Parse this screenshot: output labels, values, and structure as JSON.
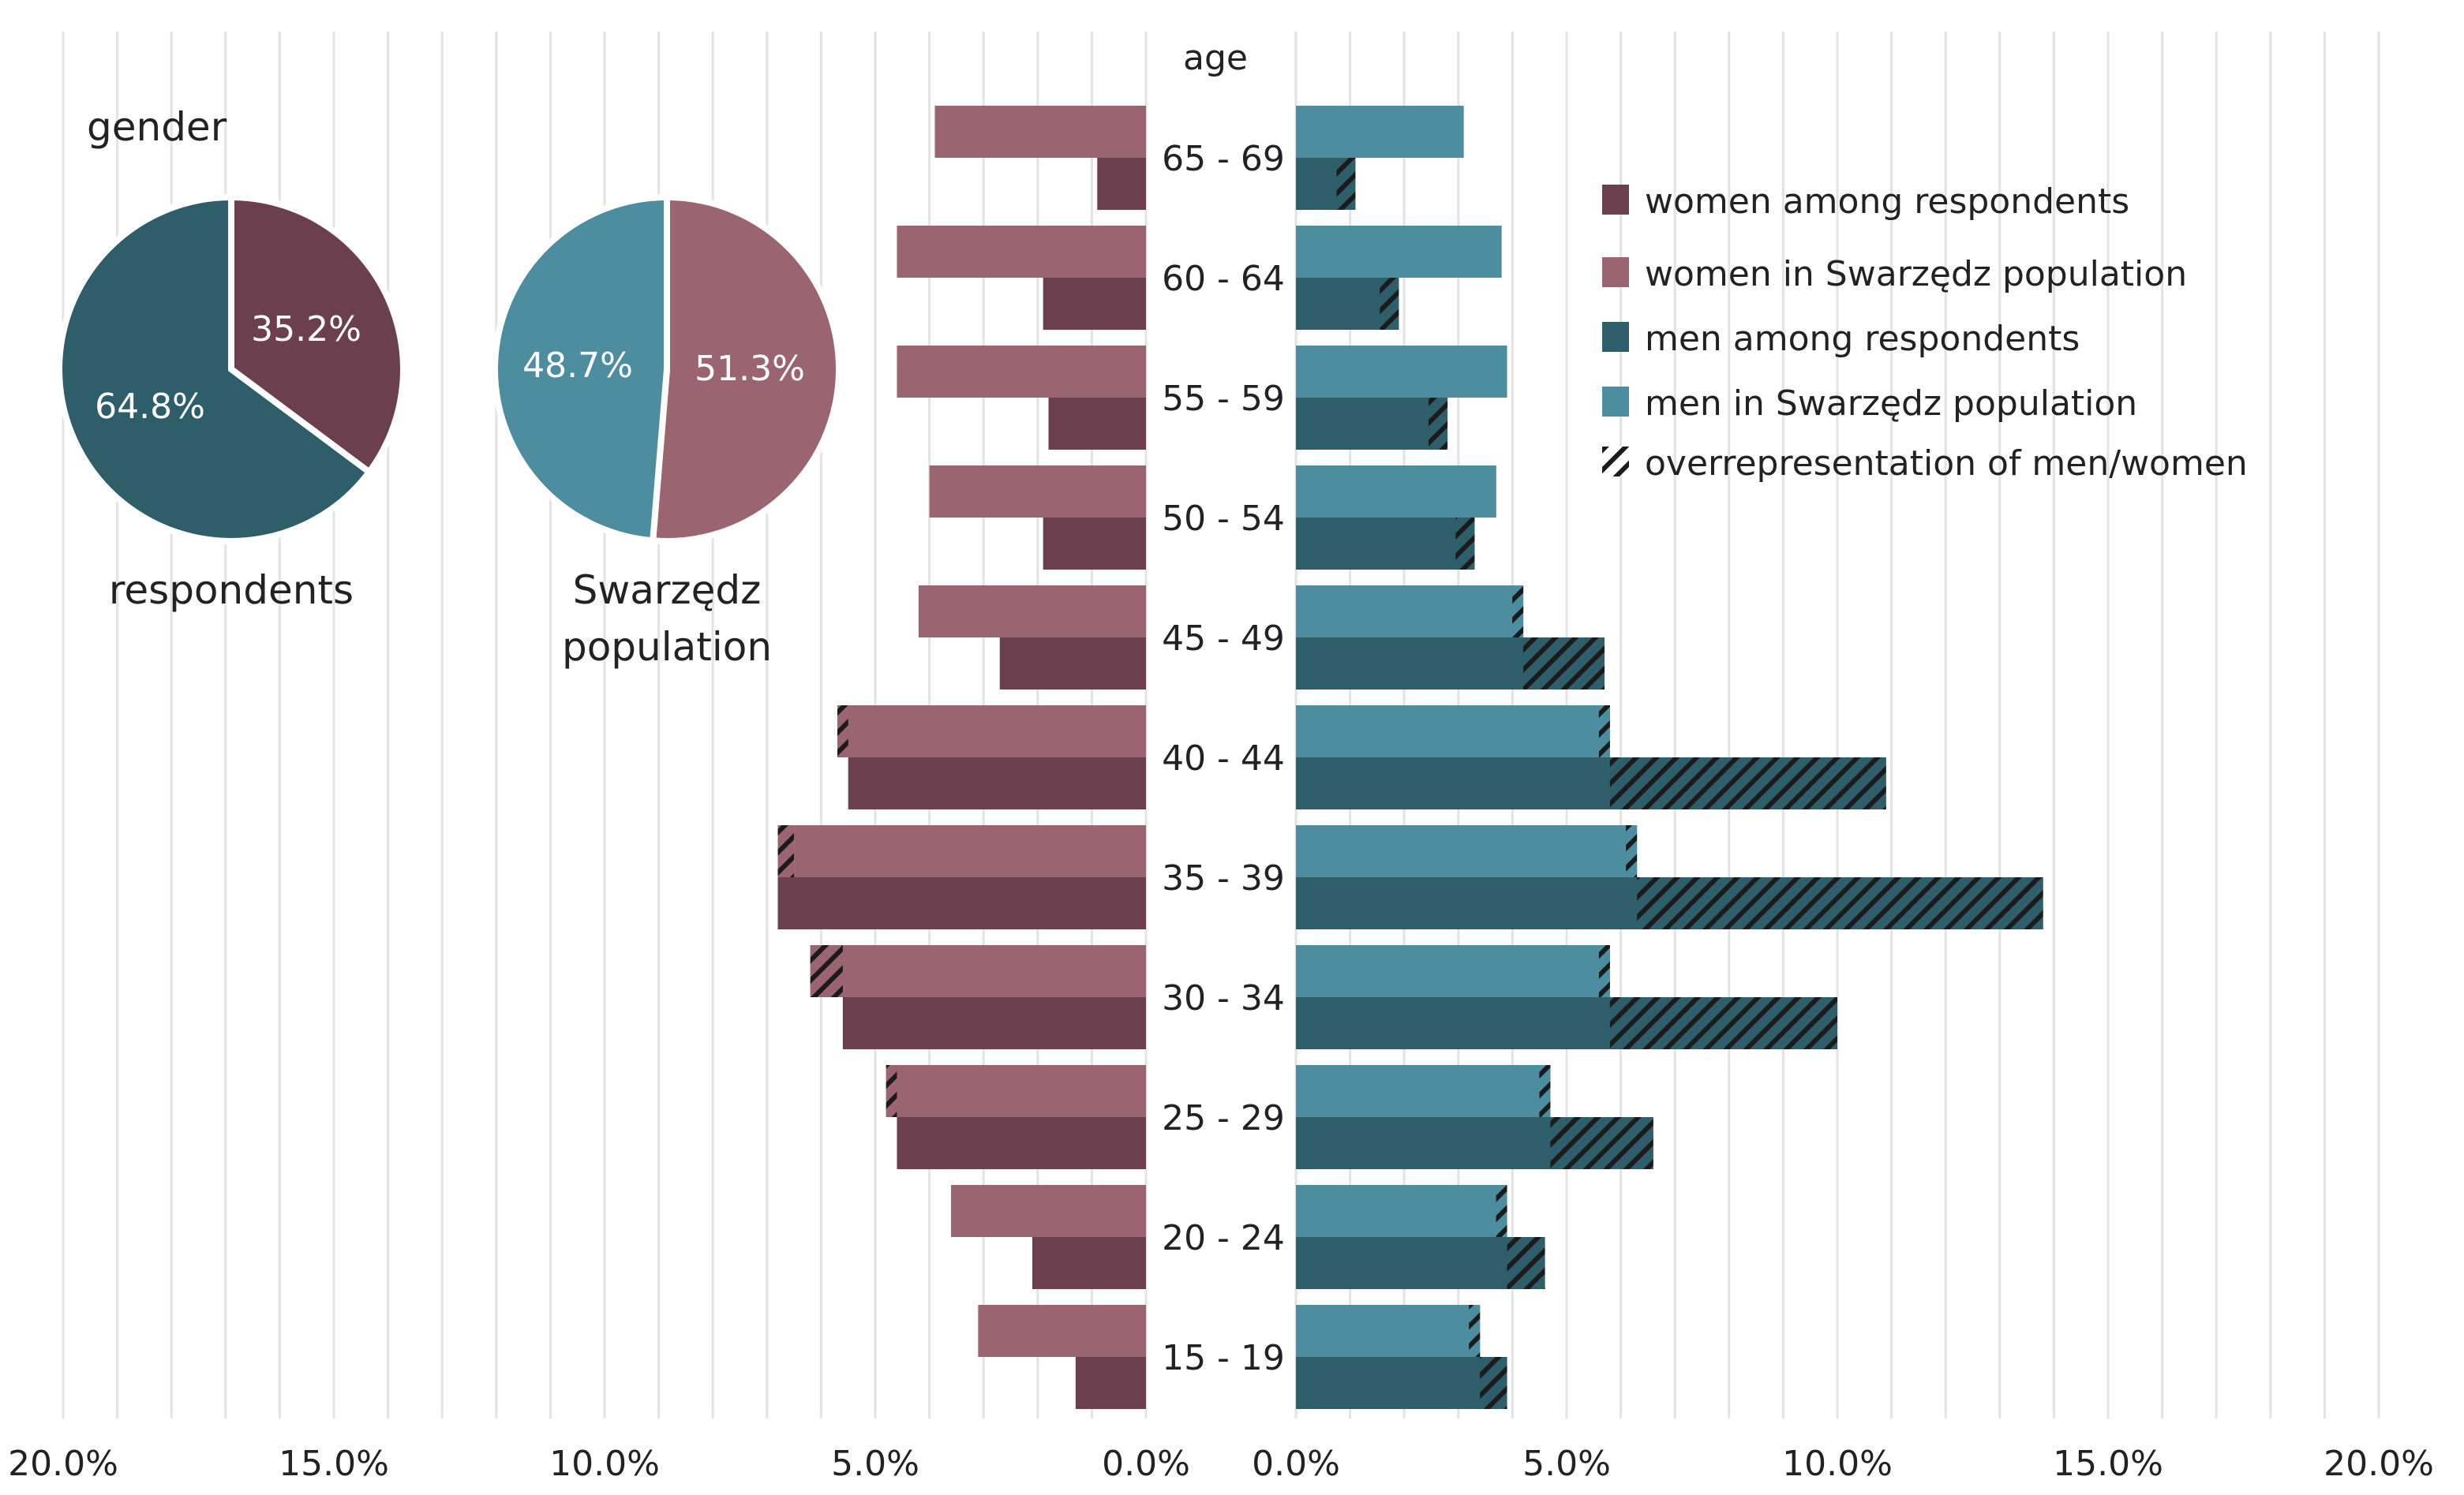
{
  "colors": {
    "women_respondents": "#6B3F4D",
    "women_population": "#9A6470",
    "men_respondents": "#2E5E6A",
    "men_population": "#4D8DA0",
    "grid": "#E3E3E3",
    "hatch": "#1B1B1B"
  },
  "chart_data": [
    {
      "type": "bar",
      "orientation": "horizontal-population-pyramid",
      "center_label": "age",
      "categories": [
        "15 - 19",
        "20 - 24",
        "25 - 29",
        "30 - 34",
        "35 - 39",
        "40 - 44",
        "45 - 49",
        "50 - 54",
        "55 - 59",
        "60 - 64",
        "65 - 69"
      ],
      "series": [
        {
          "name": "women among respondents",
          "side": "left",
          "values": [
            1.3,
            2.1,
            4.6,
            5.6,
            6.8,
            5.5,
            2.7,
            1.9,
            1.8,
            1.9,
            0.9
          ]
        },
        {
          "name": "women in Swarzędz population",
          "side": "left",
          "values": [
            3.1,
            3.6,
            4.8,
            6.2,
            6.5,
            5.7,
            4.2,
            4.0,
            4.6,
            4.6,
            3.9
          ]
        },
        {
          "name": "men among respondents",
          "side": "right",
          "values": [
            3.9,
            4.6,
            6.6,
            10.0,
            13.8,
            10.9,
            5.7,
            3.3,
            2.8,
            1.9,
            1.1
          ]
        },
        {
          "name": "men in Swarzędz population",
          "side": "right",
          "values": [
            3.4,
            3.9,
            4.7,
            5.8,
            6.3,
            5.8,
            4.2,
            3.7,
            3.9,
            3.8,
            3.1
          ]
        }
      ],
      "legend": [
        "women among respondents",
        "women in Swarzędz population",
        "men among respondents",
        "men in Swarzędz population",
        "overrepresentation of men/women"
      ],
      "legend_position": "top-right",
      "x_ticks_left": [
        "20.0%",
        "15.0%",
        "10.0%",
        "5.0%",
        "0.0%"
      ],
      "x_ticks_right": [
        "0.0%",
        "5.0%",
        "10.0%",
        "15.0%",
        "20.0%"
      ],
      "xlim": [
        0,
        20
      ],
      "grid": true
    },
    {
      "type": "pie",
      "title": "respondents",
      "labels": [
        "women",
        "men"
      ],
      "values": [
        35.2,
        64.8
      ],
      "value_labels": [
        "35.2%",
        "64.8%"
      ]
    },
    {
      "type": "pie",
      "title": "Swarzędz population",
      "title_lines": [
        "Swarzędz",
        "population"
      ],
      "labels": [
        "women",
        "men"
      ],
      "values": [
        51.3,
        48.7
      ],
      "value_labels": [
        "51.3%",
        "48.7%"
      ]
    }
  ],
  "gender_heading": "gender"
}
